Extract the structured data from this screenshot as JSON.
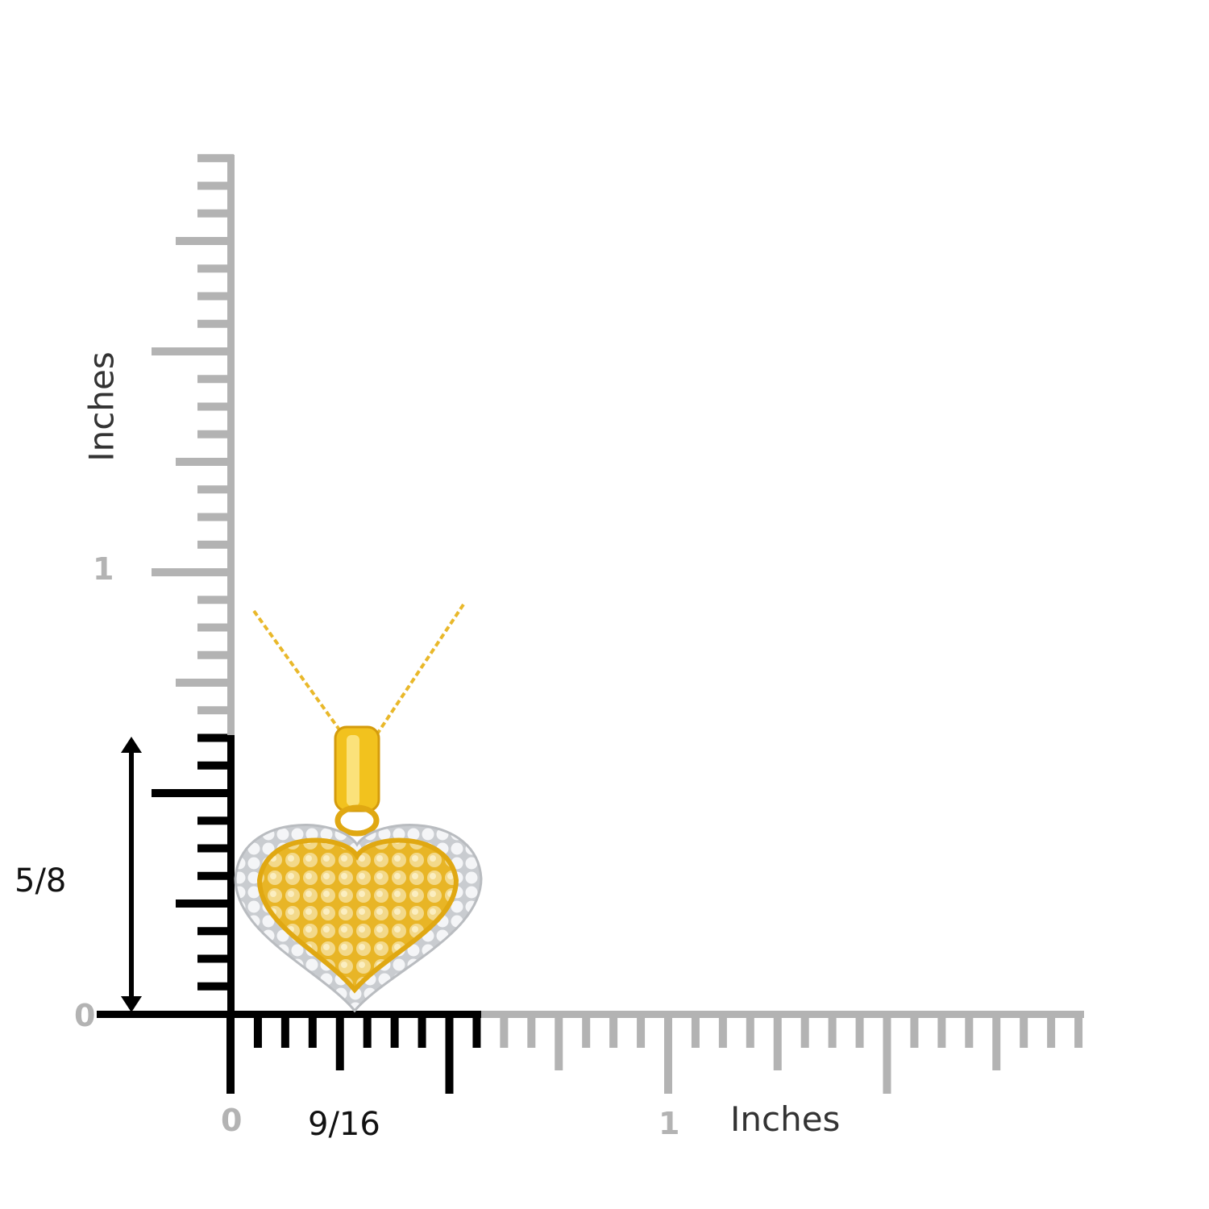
{
  "colors": {
    "ruler_gray": "#b3b3b3",
    "ruler_black": "#000000",
    "gold": "#f2c21e",
    "diamond_white": "#e9ecef"
  },
  "vertical_ruler": {
    "title": "Inches",
    "tick_1": "1",
    "tick_0": "0",
    "measurement": "5/8",
    "measurement_value_in": 0.625
  },
  "horizontal_ruler": {
    "title": "Inches",
    "tick_0": "0",
    "tick_1": "1",
    "measurement": "9/16",
    "measurement_value_in": 0.5625
  },
  "product": {
    "image": "heart-pendant-necklace"
  }
}
